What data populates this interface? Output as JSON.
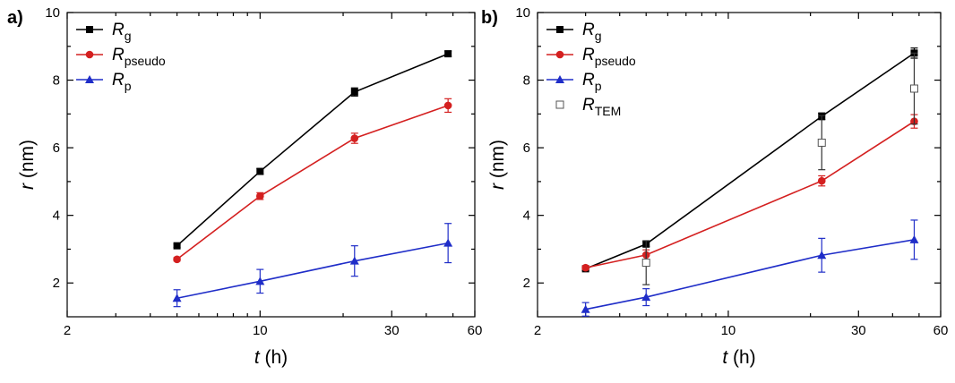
{
  "chart_data": [
    {
      "type": "line",
      "panel_label": "a)",
      "xlabel_var": "t",
      "xlabel_unit": " (h)",
      "ylabel_var": "r",
      "ylabel_unit": " (nm)",
      "xscale": "log",
      "xlim": [
        2,
        60
      ],
      "ylim": [
        1,
        10
      ],
      "xticks": [
        2,
        10,
        30,
        60
      ],
      "xtick_labels": [
        "2",
        "10",
        "30",
        "60"
      ],
      "yticks": [
        2,
        4,
        6,
        8,
        10
      ],
      "ytick_labels": [
        "2",
        "4",
        "6",
        "8",
        "10"
      ],
      "legend_position": "top-left",
      "series": [
        {
          "name": "R",
          "sub": "g",
          "color": "#000000",
          "marker": "square",
          "x": [
            5,
            10,
            22,
            48
          ],
          "y": [
            3.1,
            5.3,
            7.65,
            8.78
          ],
          "err": [
            0.05,
            0.08,
            0.12,
            0.08
          ]
        },
        {
          "name": "R",
          "sub": "pseudo",
          "color": "#d42020",
          "marker": "circle",
          "x": [
            5,
            10,
            22,
            48
          ],
          "y": [
            2.7,
            4.57,
            6.28,
            7.25
          ],
          "err": [
            0.05,
            0.1,
            0.15,
            0.2
          ]
        },
        {
          "name": "R",
          "sub": "p",
          "color": "#1f2dc8",
          "marker": "triangle",
          "x": [
            5,
            10,
            22,
            48
          ],
          "y": [
            1.55,
            2.05,
            2.65,
            3.18
          ],
          "err": [
            0.25,
            0.35,
            0.45,
            0.58
          ]
        }
      ]
    },
    {
      "type": "line",
      "panel_label": "b)",
      "xlabel_var": "t",
      "xlabel_unit": " (h)",
      "ylabel_var": "r",
      "ylabel_unit": " (nm)",
      "xscale": "log",
      "xlim": [
        2,
        60
      ],
      "ylim": [
        1,
        10
      ],
      "xticks": [
        2,
        10,
        30,
        60
      ],
      "xtick_labels": [
        "2",
        "10",
        "30",
        "60"
      ],
      "yticks": [
        2,
        4,
        6,
        8,
        10
      ],
      "ytick_labels": [
        "2",
        "4",
        "6",
        "8",
        "10"
      ],
      "legend_position": "top-left",
      "series": [
        {
          "name": "R",
          "sub": "g",
          "color": "#000000",
          "marker": "square",
          "x": [
            3,
            5,
            22,
            48
          ],
          "y": [
            2.42,
            3.15,
            6.93,
            8.8
          ],
          "err": [
            0.05,
            0.07,
            0.1,
            0.15
          ]
        },
        {
          "name": "R",
          "sub": "pseudo",
          "color": "#d42020",
          "marker": "circle",
          "x": [
            3,
            5,
            22,
            48
          ],
          "y": [
            2.45,
            2.83,
            5.02,
            6.78
          ],
          "err": [
            0.05,
            0.15,
            0.15,
            0.2
          ]
        },
        {
          "name": "R",
          "sub": "p",
          "color": "#1f2dc8",
          "marker": "triangle",
          "x": [
            3,
            5,
            22,
            48
          ],
          "y": [
            1.22,
            1.58,
            2.82,
            3.28
          ],
          "err": [
            0.2,
            0.25,
            0.5,
            0.58
          ]
        },
        {
          "name": "R",
          "sub": "TEM",
          "color": "#000000",
          "marker": "open-square",
          "no_line": true,
          "x": [
            5,
            22,
            48
          ],
          "y": [
            2.6,
            6.15,
            7.75
          ],
          "err": [
            0.65,
            0.8,
            1.05
          ]
        }
      ]
    }
  ]
}
